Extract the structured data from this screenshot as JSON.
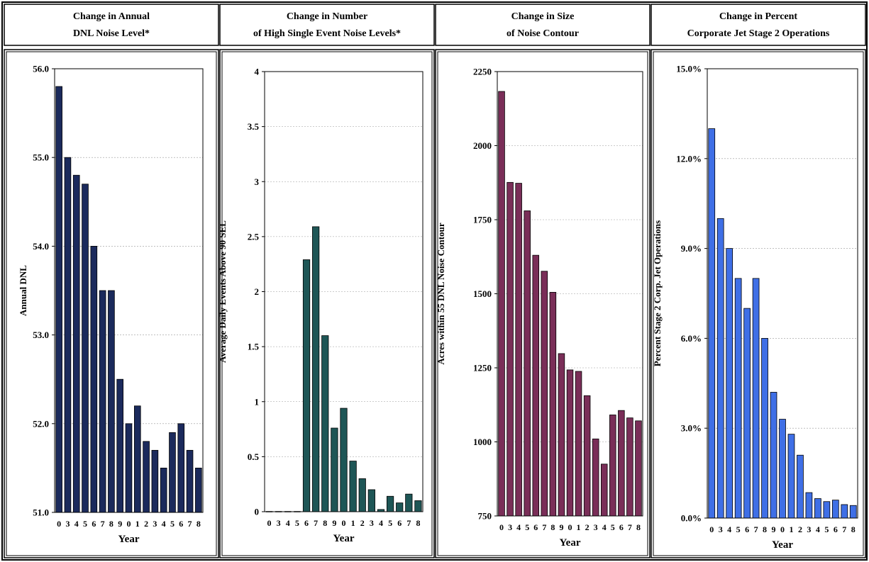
{
  "chart_data": [
    {
      "type": "bar",
      "header": [
        "Change in Annual",
        "DNL Noise Level*"
      ],
      "xlabel": "Year",
      "ylabel": "Annual DNL",
      "categories": [
        "0",
        "3",
        "4",
        "5",
        "6",
        "7",
        "8",
        "9",
        "0",
        "1",
        "2",
        "3",
        "4",
        "5",
        "6",
        "7",
        "8"
      ],
      "values": [
        55.8,
        55.0,
        54.8,
        54.7,
        54.0,
        53.5,
        53.5,
        52.5,
        52.0,
        52.2,
        51.8,
        51.7,
        51.5,
        51.9,
        52.0,
        51.7,
        51.5
      ],
      "ylim": [
        51.0,
        56.0
      ],
      "yticks": [
        "51.0",
        "52.0",
        "53.0",
        "54.0",
        "55.0",
        "56.0"
      ],
      "grid": true,
      "color": "#1b2a5c"
    },
    {
      "type": "bar",
      "header": [
        "Change in Number",
        "of High Single Event Noise Levels*"
      ],
      "xlabel": "Year",
      "ylabel": "Average Daily Events Above 90 SEL",
      "categories": [
        "0",
        "3",
        "4",
        "5",
        "6",
        "7",
        "8",
        "9",
        "0",
        "1",
        "2",
        "3",
        "4",
        "5",
        "6",
        "7",
        "8"
      ],
      "values": [
        0,
        0,
        0,
        0,
        2.29,
        2.59,
        1.6,
        0.76,
        0.94,
        0.46,
        0.3,
        0.2,
        0.02,
        0.14,
        0.08,
        0.16,
        0.1
      ],
      "ylim": [
        0,
        4
      ],
      "yticks": [
        "0",
        "0.5",
        "1",
        "1.5",
        "2",
        "2.5",
        "3",
        "3.5",
        "4"
      ],
      "grid": true,
      "color": "#1e5656"
    },
    {
      "type": "bar",
      "header": [
        "Change in Size",
        "of Noise Contour"
      ],
      "xlabel": "Year",
      "ylabel": "Acres within 55 DNL Noise Contour",
      "categories": [
        "0",
        "3",
        "4",
        "5",
        "6",
        "7",
        "8",
        "9",
        "0",
        "1",
        "2",
        "3",
        "4",
        "5",
        "6",
        "7",
        "8"
      ],
      "values": [
        2183,
        1876,
        1873,
        1780,
        1630,
        1576,
        1505,
        1298,
        1243,
        1238,
        1156,
        1010,
        925,
        1091,
        1106,
        1081,
        1071
      ],
      "ylim": [
        750,
        2250
      ],
      "yticks": [
        "750",
        "1000",
        "1250",
        "1500",
        "1750",
        "2000",
        "2250"
      ],
      "grid": true,
      "color": "#7a2e58"
    },
    {
      "type": "bar",
      "header": [
        "Change in Percent",
        "Corporate Jet Stage 2 Operations"
      ],
      "xlabel": "Year",
      "ylabel": "Percent Stage 2 Corp. Jet Operations",
      "categories": [
        "0",
        "3",
        "4",
        "5",
        "6",
        "7",
        "8",
        "9",
        "0",
        "1",
        "2",
        "3",
        "4",
        "5",
        "6",
        "7",
        "8"
      ],
      "values": [
        13.0,
        10.0,
        9.0,
        8.0,
        7.0,
        8.0,
        6.0,
        4.2,
        3.3,
        2.8,
        2.1,
        0.85,
        0.65,
        0.55,
        0.6,
        0.45,
        0.42
      ],
      "ylim": [
        0,
        15
      ],
      "yticks": [
        "0.0%",
        "3.0%",
        "6.0%",
        "9.0%",
        "12.0%",
        "15.0%"
      ],
      "grid": true,
      "color": "#3f6fe6"
    }
  ]
}
